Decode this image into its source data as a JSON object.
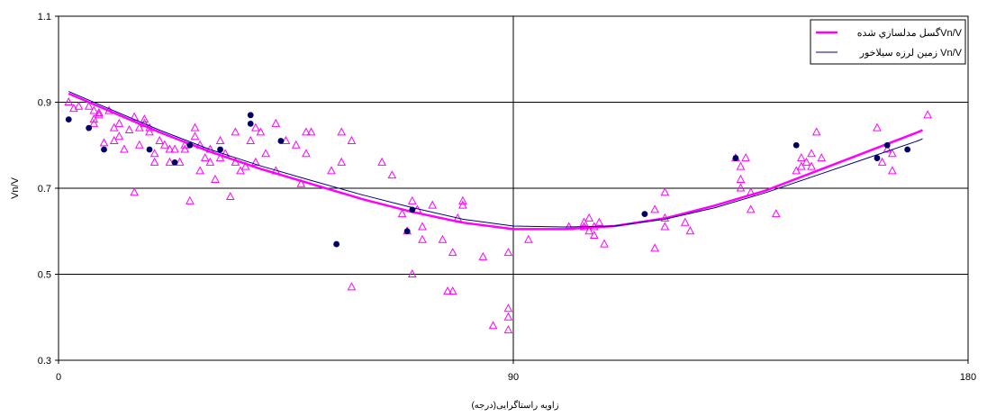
{
  "chart_data": {
    "type": "scatter",
    "xlabel": "زاویه راستاگرایی(درجه)",
    "ylabel": "Vn/V",
    "xlim": [
      0,
      180
    ],
    "ylim": [
      0.3,
      1.1
    ],
    "xticks": [
      0,
      90,
      180
    ],
    "yticks": [
      0.3,
      0.5,
      0.7,
      0.9,
      1.1
    ],
    "ytick_labels": [
      "0.3",
      "0.5",
      "0.7",
      "0.9",
      "1.1"
    ],
    "xtick_labels": [
      "0",
      "90",
      "180"
    ],
    "grid": true,
    "legend_position": "top-right",
    "colors": {
      "magenta": "#ff00ff",
      "navy": "#000080",
      "dots": "#000066"
    },
    "legend": [
      {
        "label": "گسل مدلسازي شدهVn/V",
        "color": "#ff00ff",
        "style": "thick-line"
      },
      {
        "label": "زمین لرزه سیلاخور Vn/V",
        "color": "#000080",
        "style": "thin-line"
      }
    ],
    "series": [
      {
        "name": "گسل مدلسازي شدهVn/V",
        "kind": "curve",
        "color": "#ff00ff",
        "points": [
          [
            2,
            0.92
          ],
          [
            10,
            0.88
          ],
          [
            20,
            0.83
          ],
          [
            30,
            0.785
          ],
          [
            40,
            0.745
          ],
          [
            50,
            0.71
          ],
          [
            60,
            0.675
          ],
          [
            70,
            0.645
          ],
          [
            80,
            0.62
          ],
          [
            90,
            0.605
          ],
          [
            100,
            0.605
          ],
          [
            110,
            0.612
          ],
          [
            120,
            0.63
          ],
          [
            130,
            0.66
          ],
          [
            140,
            0.695
          ],
          [
            150,
            0.74
          ],
          [
            160,
            0.785
          ],
          [
            170,
            0.83
          ],
          [
            171,
            0.835
          ]
        ]
      },
      {
        "name": "زمین لرزه سیلاخور Vn/V",
        "kind": "curve",
        "color": "#000080",
        "points": [
          [
            2,
            0.925
          ],
          [
            10,
            0.885
          ],
          [
            20,
            0.835
          ],
          [
            30,
            0.79
          ],
          [
            40,
            0.752
          ],
          [
            50,
            0.718
          ],
          [
            60,
            0.685
          ],
          [
            70,
            0.655
          ],
          [
            80,
            0.628
          ],
          [
            90,
            0.612
          ],
          [
            100,
            0.61
          ],
          [
            110,
            0.612
          ],
          [
            120,
            0.628
          ],
          [
            130,
            0.655
          ],
          [
            140,
            0.69
          ],
          [
            150,
            0.73
          ],
          [
            160,
            0.77
          ],
          [
            170,
            0.81
          ],
          [
            171,
            0.815
          ]
        ]
      },
      {
        "kind": "triangles",
        "color": "#ff00ff",
        "points": [
          [
            2,
            0.9
          ],
          [
            3,
            0.885
          ],
          [
            4,
            0.89
          ],
          [
            6,
            0.89
          ],
          [
            7,
            0.88
          ],
          [
            7,
            0.86
          ],
          [
            7,
            0.85
          ],
          [
            8,
            0.875
          ],
          [
            8,
            0.87
          ],
          [
            9,
            0.805
          ],
          [
            10,
            0.88
          ],
          [
            11,
            0.84
          ],
          [
            11,
            0.81
          ],
          [
            12,
            0.85
          ],
          [
            12,
            0.82
          ],
          [
            13,
            0.79
          ],
          [
            14,
            0.835
          ],
          [
            15,
            0.865
          ],
          [
            15,
            0.69
          ],
          [
            16,
            0.8
          ],
          [
            16,
            0.84
          ],
          [
            17,
            0.86
          ],
          [
            17,
            0.85
          ],
          [
            18,
            0.84
          ],
          [
            18,
            0.83
          ],
          [
            19,
            0.78
          ],
          [
            19,
            0.76
          ],
          [
            20,
            0.81
          ],
          [
            21,
            0.8
          ],
          [
            22,
            0.76
          ],
          [
            22,
            0.79
          ],
          [
            23,
            0.79
          ],
          [
            24,
            0.76
          ],
          [
            25,
            0.79
          ],
          [
            25,
            0.8
          ],
          [
            26,
            0.67
          ],
          [
            27,
            0.82
          ],
          [
            27,
            0.84
          ],
          [
            28,
            0.8
          ],
          [
            28,
            0.74
          ],
          [
            29,
            0.77
          ],
          [
            30,
            0.76
          ],
          [
            30,
            0.79
          ],
          [
            31,
            0.72
          ],
          [
            32,
            0.81
          ],
          [
            32,
            0.77
          ],
          [
            33,
            0.78
          ],
          [
            34,
            0.68
          ],
          [
            35,
            0.83
          ],
          [
            35,
            0.76
          ],
          [
            36,
            0.74
          ],
          [
            37,
            0.75
          ],
          [
            38,
            0.81
          ],
          [
            39,
            0.84
          ],
          [
            39,
            0.76
          ],
          [
            40,
            0.83
          ],
          [
            41,
            0.78
          ],
          [
            43,
            0.85
          ],
          [
            43,
            0.74
          ],
          [
            45,
            0.81
          ],
          [
            47,
            0.8
          ],
          [
            48,
            0.71
          ],
          [
            49,
            0.78
          ],
          [
            49,
            0.83
          ],
          [
            50,
            0.83
          ],
          [
            54,
            0.74
          ],
          [
            56,
            0.76
          ],
          [
            56,
            0.83
          ],
          [
            58,
            0.81
          ],
          [
            58,
            0.47
          ],
          [
            64,
            0.76
          ],
          [
            66,
            0.73
          ],
          [
            68,
            0.64
          ],
          [
            69,
            0.6
          ],
          [
            70,
            0.67
          ],
          [
            70,
            0.5
          ],
          [
            71,
            0.65
          ],
          [
            72,
            0.61
          ],
          [
            72,
            0.58
          ],
          [
            74,
            0.66
          ],
          [
            76,
            0.58
          ],
          [
            77,
            0.46
          ],
          [
            78,
            0.46
          ],
          [
            78,
            0.55
          ],
          [
            79,
            0.63
          ],
          [
            80,
            0.66
          ],
          [
            80,
            0.67
          ],
          [
            84,
            0.54
          ],
          [
            86,
            0.38
          ],
          [
            89,
            0.4
          ],
          [
            89,
            0.42
          ],
          [
            89,
            0.37
          ],
          [
            89,
            0.55
          ],
          [
            93,
            0.58
          ],
          [
            101,
            0.61
          ],
          [
            104,
            0.61
          ],
          [
            104,
            0.62
          ],
          [
            105,
            0.63
          ],
          [
            105,
            0.6
          ],
          [
            106,
            0.61
          ],
          [
            106,
            0.59
          ],
          [
            107,
            0.62
          ],
          [
            108,
            0.57
          ],
          [
            118,
            0.56
          ],
          [
            118,
            0.65
          ],
          [
            120,
            0.61
          ],
          [
            120,
            0.63
          ],
          [
            120,
            0.69
          ],
          [
            124,
            0.62
          ],
          [
            125,
            0.6
          ],
          [
            134,
            0.77
          ],
          [
            135,
            0.75
          ],
          [
            135,
            0.72
          ],
          [
            135,
            0.7
          ],
          [
            136,
            0.77
          ],
          [
            137,
            0.65
          ],
          [
            137,
            0.69
          ],
          [
            142,
            0.64
          ],
          [
            146,
            0.74
          ],
          [
            147,
            0.75
          ],
          [
            147,
            0.77
          ],
          [
            148,
            0.76
          ],
          [
            149,
            0.78
          ],
          [
            149,
            0.75
          ],
          [
            150,
            0.83
          ],
          [
            151,
            0.77
          ],
          [
            162,
            0.84
          ],
          [
            163,
            0.76
          ],
          [
            164,
            0.79
          ],
          [
            165,
            0.74
          ],
          [
            165,
            0.78
          ],
          [
            172,
            0.87
          ]
        ]
      },
      {
        "kind": "dots",
        "color": "#000066",
        "points": [
          [
            2,
            0.86
          ],
          [
            6,
            0.84
          ],
          [
            9,
            0.79
          ],
          [
            18,
            0.79
          ],
          [
            23,
            0.76
          ],
          [
            26,
            0.8
          ],
          [
            32,
            0.79
          ],
          [
            38,
            0.87
          ],
          [
            38,
            0.85
          ],
          [
            44,
            0.81
          ],
          [
            55,
            0.57
          ],
          [
            69,
            0.6
          ],
          [
            70,
            0.65
          ],
          [
            116,
            0.64
          ],
          [
            134,
            0.77
          ],
          [
            146,
            0.8
          ],
          [
            162,
            0.77
          ],
          [
            164,
            0.8
          ],
          [
            168,
            0.79
          ]
        ]
      }
    ]
  }
}
